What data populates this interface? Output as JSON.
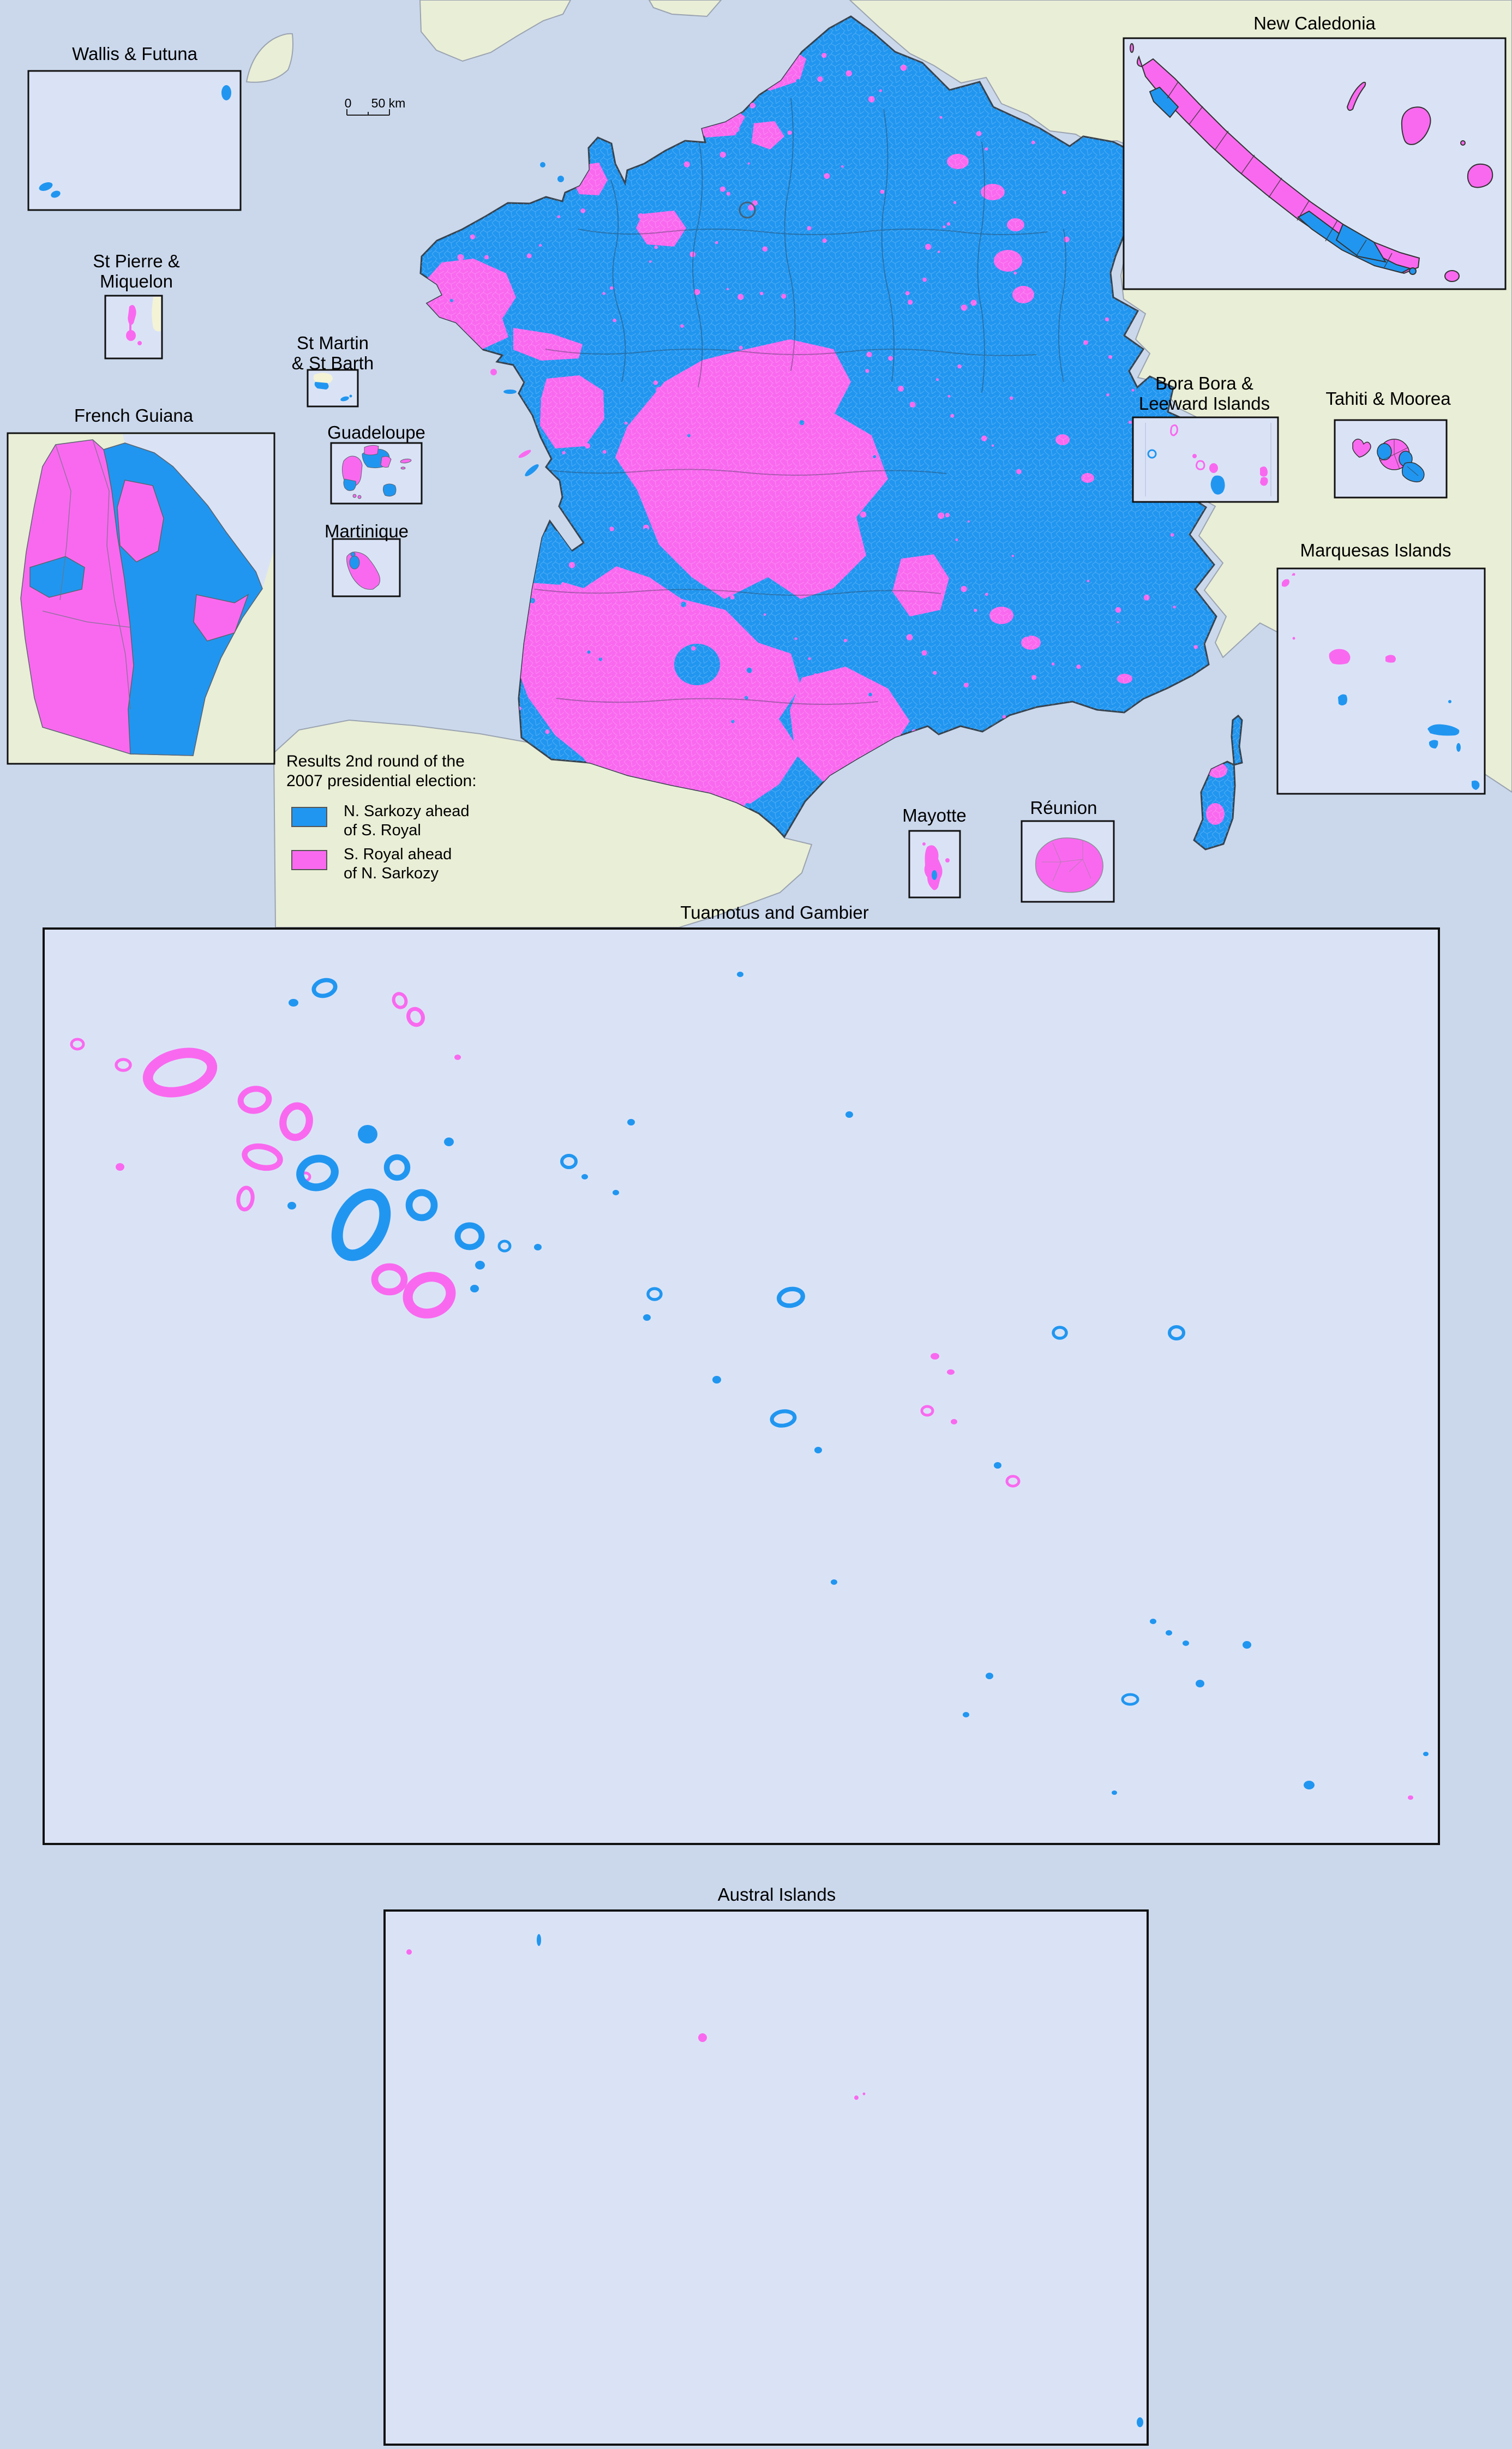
{
  "legend": {
    "title_line1": "Results 2nd round of the",
    "title_line2": "2007 presidential election:",
    "items": [
      {
        "id": "sarkozy",
        "line1": "N. Sarkozy ahead",
        "line2": "of S. Royal",
        "color": "#2196f0"
      },
      {
        "id": "royal",
        "line1": "S. Royal ahead",
        "line2": "of N. Sarkozy",
        "color": "#f969ef"
      }
    ]
  },
  "scale_bar": {
    "zero": "0",
    "fifty": "50 km"
  },
  "insets": {
    "wallis_futuna": {
      "label": "Wallis & Futuna"
    },
    "st_pierre_miquelon": {
      "line1": "St Pierre &",
      "line2": "Miquelon"
    },
    "st_martin_st_barth": {
      "line1": "St Martin",
      "line2": "& St Barth"
    },
    "french_guiana": {
      "label": "French Guiana"
    },
    "guadeloupe": {
      "label": "Guadeloupe"
    },
    "martinique": {
      "label": "Martinique"
    },
    "new_caledonia": {
      "label": "New Caledonia"
    },
    "bora_bora_leeward": {
      "line1": "Bora Bora &",
      "line2": "Leeward Islands"
    },
    "tahiti_moorea": {
      "label": "Tahiti & Moorea"
    },
    "marquesas": {
      "label": "Marquesas Islands"
    },
    "mayotte": {
      "label": "Mayotte"
    },
    "reunion": {
      "label": "Réunion"
    },
    "tuamotus_gambier": {
      "label": "Tuamotus and Gambier"
    },
    "austral": {
      "label": "Austral Islands"
    }
  },
  "colors": {
    "sarkozy_blue": "#2196f0",
    "royal_pink": "#f969ef",
    "sea": "#cbd8ec",
    "inset_sea": "#dae3f6",
    "land_green": "#e9eed6",
    "land_cream": "#f4f3d6",
    "box_border": "#111111"
  }
}
